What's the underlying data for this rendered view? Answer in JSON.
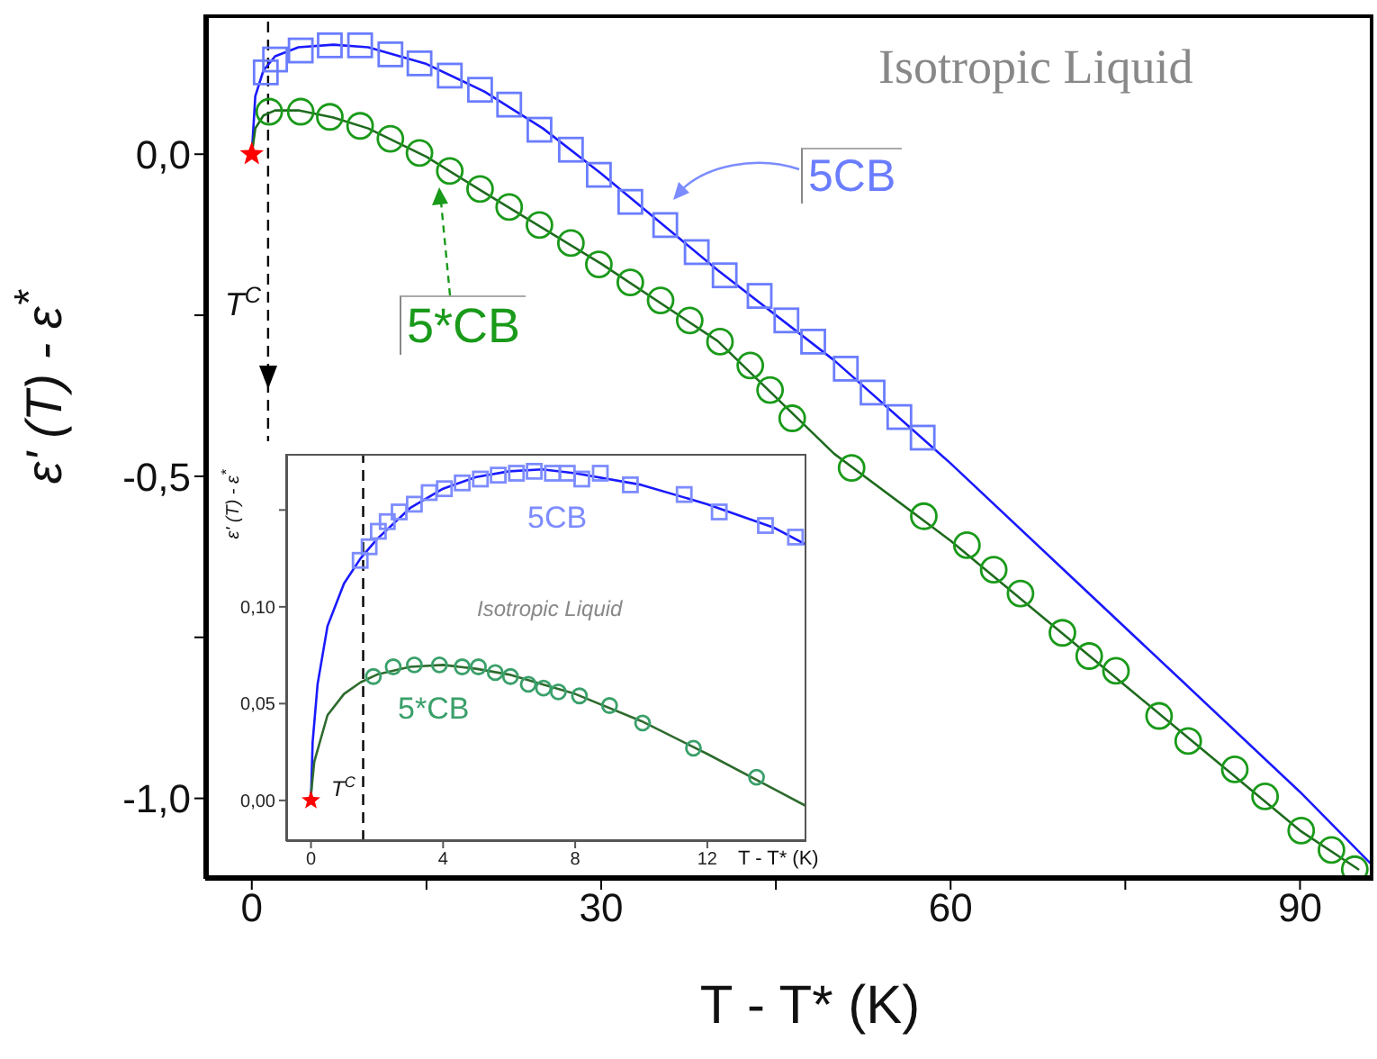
{
  "chart_data": [
    {
      "type": "scatter",
      "xlabel": "T - T*   (K)",
      "ylabel": "ε' (T) - ε$^{*}$",
      "xlim": [
        -4,
        96.3
      ],
      "ylim": [
        -1.125,
        0.217
      ],
      "xticks": [
        0,
        {
          "value": 15,
          "label": null
        },
        30,
        {
          "value": 45,
          "label": null
        },
        60,
        {
          "value": 75,
          "label": null
        },
        90
      ],
      "yticks": [
        {
          "value": 0,
          "label": "0,0"
        },
        {
          "value": -0.25,
          "label": null
        },
        {
          "value": -0.5,
          "label": "-0,5"
        },
        {
          "value": -0.75,
          "label": null
        },
        {
          "value": -1,
          "label": "-1,0"
        }
      ],
      "annotations": [
        "Isotropic Liquid"
      ],
      "ref_lines": [
        {
          "axis": "x",
          "value": 1.4,
          "label": "T$^{C}$",
          "color": "#000000",
          "line_style": "dashed"
        }
      ],
      "series": [
        {
          "type": "scatter",
          "name": "5CB",
          "color": "#6a7dff",
          "marker": "square",
          "x": [
            1.2,
            2.0,
            4.2,
            6.7,
            9.3,
            11.9,
            14.4,
            17,
            19.6,
            22.1,
            24.7,
            27.4,
            29.8,
            32.5,
            35.5,
            38.2,
            40.6,
            43.6,
            45.9,
            48.2,
            51,
            53.3,
            55.6,
            57.6
          ],
          "values": [
            0.127,
            0.147,
            0.161,
            0.169,
            0.169,
            0.155,
            0.141,
            0.122,
            0.1,
            0.077,
            0.038,
            0.007,
            -0.032,
            -0.074,
            -0.11,
            -0.152,
            -0.188,
            -0.22,
            -0.258,
            -0.291,
            -0.333,
            -0.37,
            -0.408,
            -0.44
          ]
        },
        {
          "type": "line",
          "color": "#1a1aff",
          "marker": "none",
          "x": [
            0,
            0.3,
            1,
            2,
            4,
            7,
            10,
            15,
            20,
            25,
            30,
            40,
            50,
            60,
            70,
            80,
            90,
            96
          ],
          "values": [
            0,
            0.09,
            0.13,
            0.152,
            0.166,
            0.17,
            0.166,
            0.14,
            0.097,
            0.04,
            -0.03,
            -0.18,
            -0.32,
            -0.48,
            -0.65,
            -0.82,
            -0.99,
            -1.1
          ]
        },
        {
          "type": "scatter",
          "name": "5*CB",
          "color": "#1a9a1a",
          "marker": "circle",
          "x": [
            1.5,
            4.2,
            6.7,
            9.3,
            11.9,
            14.4,
            17,
            19.6,
            22.1,
            24.7,
            27.4,
            29.8,
            32.5,
            35.1,
            37.6,
            40.2,
            42.8,
            44.5,
            46.4,
            51.5,
            57.7,
            61.4,
            63.7,
            66,
            69.6,
            71.9,
            74.2,
            77.9,
            80.4,
            84.4,
            87,
            90.1,
            92.7,
            94.7
          ],
          "values": [
            0.066,
            0.066,
            0.058,
            0.044,
            0.024,
            0.002,
            -0.026,
            -0.054,
            -0.082,
            -0.11,
            -0.138,
            -0.171,
            -0.199,
            -0.227,
            -0.258,
            -0.291,
            -0.328,
            -0.366,
            -0.41,
            -0.487,
            -0.562,
            -0.607,
            -0.645,
            -0.682,
            -0.743,
            -0.779,
            -0.802,
            -0.872,
            -0.911,
            -0.955,
            -0.997,
            -1.05,
            -1.08,
            -1.11
          ]
        },
        {
          "type": "line",
          "color": "#1e6b1e",
          "marker": "none",
          "x": [
            0,
            0.3,
            1,
            2,
            4,
            7,
            10,
            15,
            20,
            30,
            40,
            50,
            60,
            70,
            80,
            90,
            95
          ],
          "values": [
            0,
            0.04,
            0.06,
            0.068,
            0.068,
            0.057,
            0.04,
            -0.004,
            -0.06,
            -0.17,
            -0.29,
            -0.465,
            -0.6,
            -0.75,
            -0.9,
            -1.05,
            -1.11
          ]
        },
        {
          "type": "scatter",
          "color": "#ff0000",
          "marker": "star",
          "x": [
            0
          ],
          "values": [
            0
          ]
        }
      ]
    },
    {
      "type": "scatter",
      "xlabel": "T - T* (K)",
      "ylabel": "ε' (T) - ε$^{*}$",
      "xlim": [
        -0.75,
        15
      ],
      "ylim": [
        -0.021,
        0.179
      ],
      "xticks": [
        0,
        4,
        8,
        12
      ],
      "yticks": [
        {
          "value": 0,
          "label": "0,00"
        },
        {
          "value": 0.05,
          "label": "0,05"
        },
        {
          "value": 0.1,
          "label": "0,10"
        },
        {
          "value": 0.15,
          "label": null
        }
      ],
      "annotations": [
        "Isotropic Liquid"
      ],
      "ref_lines": [
        {
          "axis": "x",
          "value": 1.58,
          "label": "T$^{C}$",
          "color": "#000000",
          "line_style": "dashed"
        }
      ],
      "series": [
        {
          "type": "scatter",
          "name": "5CB",
          "color": "#7d8cff",
          "marker": "square",
          "x": [
            1.49,
            1.76,
            2.04,
            2.31,
            2.67,
            3.13,
            3.58,
            4.04,
            4.58,
            5.13,
            5.67,
            6.22,
            6.76,
            7.31,
            7.76,
            8.2,
            8.76,
            9.67,
            11.3,
            12.36,
            13.76,
            14.67
          ],
          "values": [
            0.124,
            0.131,
            0.139,
            0.144,
            0.149,
            0.153,
            0.159,
            0.161,
            0.164,
            0.166,
            0.168,
            0.169,
            0.17,
            0.169,
            0.169,
            0.166,
            0.169,
            0.163,
            0.158,
            0.149,
            0.142,
            0.136
          ]
        },
        {
          "type": "line",
          "color": "#1a1aff",
          "marker": "none",
          "x": [
            0,
            0.05,
            0.2,
            0.5,
            1,
            1.5,
            2,
            3,
            4,
            5,
            6,
            7,
            8,
            10,
            12,
            14,
            15
          ],
          "values": [
            0,
            0.03,
            0.06,
            0.09,
            0.112,
            0.125,
            0.135,
            0.151,
            0.161,
            0.167,
            0.17,
            0.171,
            0.169,
            0.163,
            0.153,
            0.141,
            0.132
          ]
        },
        {
          "type": "scatter",
          "name": "5*CB",
          "color": "#3aa06a",
          "marker": "circle",
          "x": [
            1.89,
            2.49,
            3.13,
            3.89,
            4.58,
            5.07,
            5.58,
            6.04,
            6.58,
            7.04,
            7.49,
            8.13,
            9.04,
            10.04,
            11.58,
            13.49
          ],
          "values": [
            0.064,
            0.069,
            0.07,
            0.07,
            0.069,
            0.069,
            0.066,
            0.064,
            0.06,
            0.058,
            0.056,
            0.054,
            0.049,
            0.04,
            0.027,
            0.012
          ]
        },
        {
          "type": "line",
          "color": "#2e6b2e",
          "marker": "none",
          "x": [
            0,
            0.1,
            0.5,
            1,
            1.5,
            2,
            3,
            4,
            5,
            6,
            8,
            10,
            12,
            14,
            15
          ],
          "values": [
            0.003,
            0.02,
            0.044,
            0.055,
            0.061,
            0.065,
            0.069,
            0.07,
            0.068,
            0.065,
            0.055,
            0.041,
            0.024,
            0.006,
            -0.003
          ]
        },
        {
          "type": "scatter",
          "color": "#ff0000",
          "marker": "star",
          "x": [
            0
          ],
          "values": [
            0
          ]
        }
      ]
    }
  ]
}
